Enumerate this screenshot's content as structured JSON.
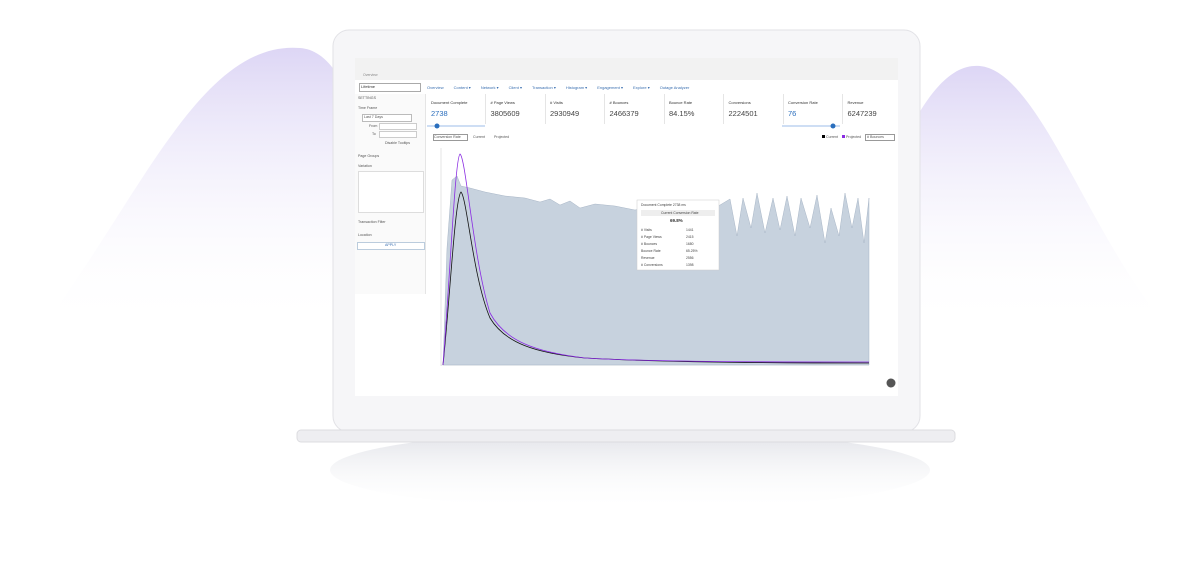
{
  "app": {
    "breadcrumb": "Overview",
    "timeframe_select": "Lifetime",
    "nav": [
      "Overview",
      "Content ▾",
      "Network ▾",
      "Client ▾",
      "Transaction ▾",
      "Histogram ▾",
      "Engagement ▾",
      "Explore ▾",
      "Outage Analyzer"
    ],
    "metrics": [
      {
        "label": "Document Complete",
        "value": "2738"
      },
      {
        "label": "# Page Views",
        "value": "3805609"
      },
      {
        "label": "# Visits",
        "value": "2930949"
      },
      {
        "label": "# Bounces",
        "value": "2466379"
      },
      {
        "label": "Bounce Rate",
        "value": "84.15%"
      },
      {
        "label": "Conversions",
        "value": "2224501"
      },
      {
        "label": "Conversion Rate",
        "value": "76"
      },
      {
        "label": "Revenue",
        "value": "6247239"
      }
    ],
    "sidebar": {
      "heading": "SETTINGS",
      "time_frame": "Time Frame",
      "range": "Last 7 Days",
      "from": "From",
      "to": "To",
      "disable_tooltips": "Disable Tooltips",
      "page_groups": "Page Groups",
      "variation": "Variation",
      "transaction_filter": "Transaction Filter",
      "location": "Location",
      "apply": "APPLY"
    },
    "chart_controls": {
      "metric": "Conversion Rate",
      "current": "Current",
      "projected": "Projected",
      "right_metric": "# Bounces"
    },
    "tooltip": {
      "title": "Document Complete 2738 ms",
      "heading": "Current Conversion Rate",
      "value": "69.8%",
      "rows": [
        [
          "# Visits",
          "1441"
        ],
        [
          "# Page Views",
          "2415"
        ],
        [
          "# Bounces",
          "1680"
        ],
        [
          "Bounce Rate",
          "65.25%"
        ],
        [
          "Revenue",
          "2556"
        ],
        [
          "# Conversions",
          "1398"
        ]
      ]
    }
  }
}
